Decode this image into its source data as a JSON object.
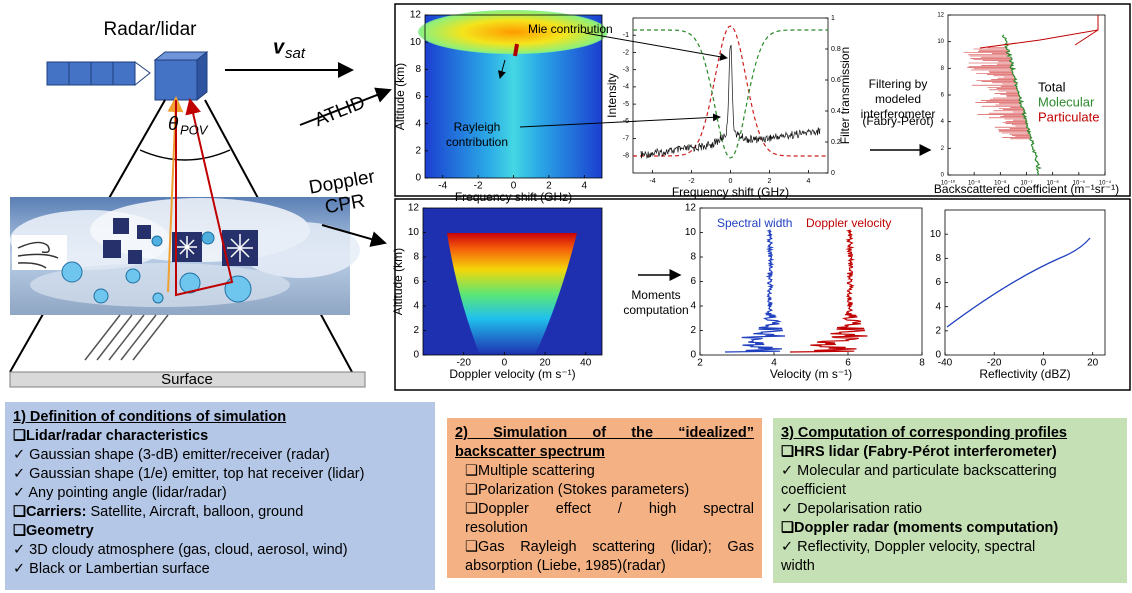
{
  "header": {
    "device": "Radar/lidar",
    "velocity": "v",
    "velocity_subscript": "sat",
    "angle": "θ",
    "angle_subscript": "POV",
    "lidar_arrow": "ATLID",
    "radar_arrow": [
      "Doppler",
      "CPR"
    ],
    "surface": "Surface"
  },
  "lidar_panel": {
    "altitude_map": {
      "ylabel": "Altitude (km)",
      "xlabel": "Frequency shift (GHz)",
      "xlim": [
        -5,
        5
      ],
      "ylim": [
        0,
        12
      ],
      "xticks": [
        -4,
        -2,
        0,
        2,
        4
      ],
      "yticks": [
        0,
        2,
        4,
        6,
        8,
        10,
        12
      ],
      "annotations": [
        "Mie contribution",
        "Rayleigh",
        "contribution"
      ]
    },
    "spectrum": {
      "ylabel": "Intensity",
      "y2label": "Filter transmission",
      "xlabel": "Frequency shift (GHz)",
      "xlim": [
        -5,
        5
      ],
      "ylim": [
        -9,
        0
      ],
      "xticks": [
        -4,
        -2,
        0,
        2,
        4
      ],
      "yticks": [
        -8,
        -7,
        -6,
        -5,
        -4,
        -3,
        -2,
        -1
      ],
      "y2lim": [
        0,
        1
      ],
      "y2ticks": [
        0,
        0.2,
        0.4,
        0.6,
        0.8,
        1
      ]
    },
    "filtering": [
      "Filtering by",
      "modeled",
      "interferometer",
      "(Fabry-Pérot)"
    ],
    "backscatter": {
      "xlabel": "Backscattered coefficient (m⁻¹sr⁻¹)",
      "xlog": true,
      "xlim": [
        1e-10,
        0.0001
      ],
      "ylim": [
        0,
        12
      ],
      "xticks": [
        {
          "value": 1e-10,
          "label": "10⁻¹⁰"
        },
        {
          "value": 1e-09,
          "label": "10⁻⁹"
        },
        {
          "value": 1e-08,
          "label": "10⁻⁸"
        },
        {
          "value": 1e-07,
          "label": "10⁻⁷"
        },
        {
          "value": 1e-06,
          "label": "10⁻⁶"
        },
        {
          "value": 1e-05,
          "label": "10⁻⁵"
        },
        {
          "value": 0.0001,
          "label": "10⁻⁴"
        }
      ],
      "yticks": [
        0,
        2,
        4,
        6,
        8,
        10,
        12
      ],
      "legend": [
        {
          "name": "Total",
          "color": "#000000"
        },
        {
          "name": "Molecular",
          "color": "#2e8b2e"
        },
        {
          "name": "Particulate",
          "color": "#c00000"
        }
      ]
    }
  },
  "radar_panel": {
    "doppler_map": {
      "ylabel": "Altitude (km)",
      "xlabel": "Doppler velocity (m s⁻¹)",
      "xlim": [
        -40,
        48
      ],
      "ylim": [
        0,
        12
      ],
      "xticks": [
        -20,
        0,
        20,
        40
      ],
      "yticks": [
        0,
        2,
        4,
        6,
        8,
        10,
        12
      ]
    },
    "moments": [
      "Moments",
      "computation"
    ],
    "velocity": {
      "xlabel": "Velocity (m s⁻¹)",
      "xlim": [
        2,
        8
      ],
      "ylim": [
        0,
        12
      ],
      "xticks": [
        2,
        4,
        6,
        8
      ],
      "yticks": [
        0,
        2,
        4,
        6,
        8,
        10,
        12
      ],
      "legend": [
        {
          "name": "Spectral width",
          "color": "#1f3fbf"
        },
        {
          "name": "Doppler velocity",
          "color": "#c00000"
        }
      ]
    },
    "reflectivity": {
      "xlabel": "Reflectivity (dBZ)",
      "xlim": [
        -40,
        25
      ],
      "ylim": [
        0,
        12
      ],
      "xticks": [
        -40,
        -20,
        0,
        20
      ],
      "yticks": [
        0,
        2,
        4,
        6,
        8,
        10
      ]
    }
  },
  "boxes": [
    {
      "color": "#b4c7e7",
      "lines": [
        [
          {
            "text": "1)  Definition of conditions of simulation",
            "style": "underline"
          }
        ],
        [
          {
            "text": "❑Lidar/radar characteristics",
            "style": "bold"
          }
        ],
        [
          {
            "text": "✓ Gaussian shape (3-dB) emitter/receiver (radar)",
            "style": "normal"
          }
        ],
        [
          {
            "text": "✓ Gaussian shape (1/e) emitter, top hat receiver (lidar)",
            "style": "normal"
          }
        ],
        [
          {
            "text": "✓ Any pointing angle (lidar/radar)",
            "style": "normal"
          }
        ],
        [
          {
            "text": "❑Carriers:",
            "style": "bold"
          },
          {
            "text": "  Satellite, Aircraft, balloon, ground",
            "style": "normal"
          }
        ],
        [
          {
            "text": "❑Geometry",
            "style": "bold"
          }
        ],
        [
          {
            "text": "✓ 3D cloudy atmosphere (gas, cloud, aerosol, wind)",
            "style": "normal"
          }
        ],
        [
          {
            "text": "✓ Black or Lambertian surface",
            "style": "normal"
          }
        ]
      ]
    },
    {
      "color": "#f4b183",
      "lines": [
        [
          {
            "text": "2)  Simulation  of  the  “idealized”",
            "style": "underline-justify"
          }
        ],
        [
          {
            "text": "backscatter spectrum",
            "style": "underline"
          }
        ],
        [
          {
            "text": "❑Multiple scattering",
            "style": "indent"
          }
        ],
        [
          {
            "text": "❑Polarization (Stokes parameters)",
            "style": "indent"
          }
        ],
        [
          {
            "text": "❑Doppler   effect   /   high   spectral",
            "style": "indent-justify"
          }
        ],
        [
          {
            "text": "resolution",
            "style": "indent"
          }
        ],
        [
          {
            "text": "❑Gas Rayleigh scattering (lidar); Gas",
            "style": "indent-justify"
          }
        ],
        [
          {
            "text": "absorption (Liebe, 1985)(radar)",
            "style": "indent"
          }
        ]
      ]
    },
    {
      "color": "#c5e0b4",
      "lines": [
        [
          {
            "text": "3) Computation of corresponding profiles",
            "style": "underline"
          }
        ],
        [
          {
            "text": "❑HRS lidar (Fabry-Pérot interferometer)",
            "style": "bold"
          }
        ],
        [
          {
            "text": "✓   Molecular and particulate backscattering",
            "style": "normal"
          }
        ],
        [
          {
            "text": "coefficient",
            "style": "normal"
          }
        ],
        [
          {
            "text": "✓   Depolarisation ratio",
            "style": "normal"
          }
        ],
        [
          {
            "text": "❑Doppler radar (moments computation)",
            "style": "bold"
          }
        ],
        [
          {
            "text": "✓   Reflectivity, Doppler velocity, spectral",
            "style": "normal"
          }
        ],
        [
          {
            "text": "width",
            "style": "normal"
          }
        ]
      ]
    }
  ]
}
